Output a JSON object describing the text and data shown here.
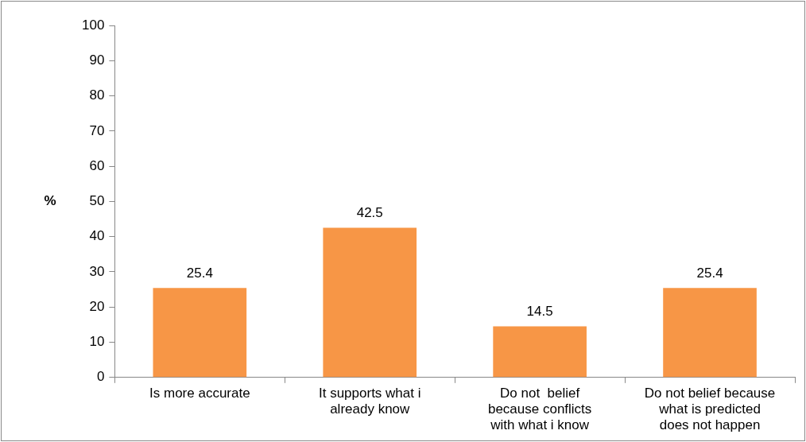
{
  "chart_data": {
    "type": "bar",
    "ylabel": "%",
    "categories": [
      "Is more accurate",
      "It supports what i already know",
      "Do not  belief because conflicts with what i know",
      "Do not belief because what is predicted does not happen"
    ],
    "values": [
      25.4,
      42.5,
      14.5,
      25.4
    ],
    "color": "#f79646",
    "ylim": [
      0,
      100
    ],
    "yticks": [
      0,
      10,
      20,
      30,
      40,
      50,
      60,
      70,
      80,
      90,
      100
    ],
    "grid": false,
    "legend": false,
    "data_labels": true
  }
}
